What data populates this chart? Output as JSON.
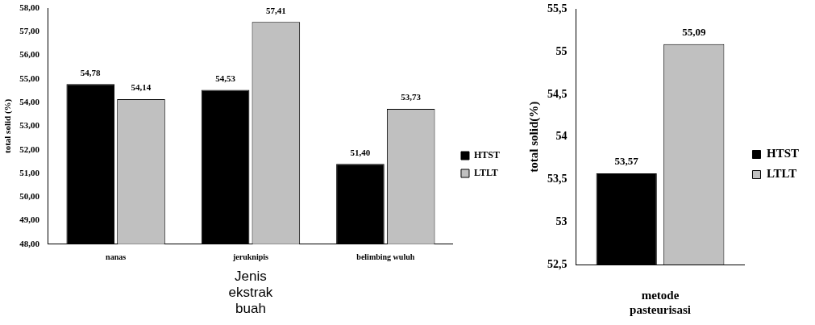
{
  "chart_data": [
    {
      "type": "bar",
      "xlabel": "Jenis ekstrak buah",
      "ylabel": "total solid (%)",
      "categories": [
        "nanas",
        "jeruknipis",
        "belimbing wuluh"
      ],
      "series": [
        {
          "name": "HTST",
          "color": "#000000",
          "values": [
            54.78,
            54.53,
            51.4
          ],
          "value_labels": [
            "54,78",
            "54,53",
            "51,40"
          ]
        },
        {
          "name": "LTLT",
          "color": "#c0c0c0",
          "values": [
            54.14,
            57.41,
            53.73
          ],
          "value_labels": [
            "54,14",
            "57,41",
            "53,73"
          ]
        }
      ],
      "ylim": [
        48,
        58
      ],
      "yticks": [
        {
          "value": 48,
          "label": "48,00"
        },
        {
          "value": 49,
          "label": "49,00"
        },
        {
          "value": 50,
          "label": "50,00"
        },
        {
          "value": 51,
          "label": "51,00"
        },
        {
          "value": 52,
          "label": "52,00"
        },
        {
          "value": 53,
          "label": "53,00"
        },
        {
          "value": 54,
          "label": "54,00"
        },
        {
          "value": 55,
          "label": "55,00"
        },
        {
          "value": 56,
          "label": "56,00"
        },
        {
          "value": 57,
          "label": "57,00"
        },
        {
          "value": 58,
          "label": "58,00"
        }
      ],
      "legend": "right"
    },
    {
      "type": "bar",
      "xlabel": "metode pasteurisasi",
      "ylabel": "total solid(%)",
      "categories": [
        null
      ],
      "series": [
        {
          "name": "HTST",
          "color": "#000000",
          "values": [
            53.57
          ],
          "value_labels": [
            "53,57"
          ]
        },
        {
          "name": "LTLT",
          "color": "#c0c0c0",
          "values": [
            55.09
          ],
          "value_labels": [
            "55,09"
          ]
        }
      ],
      "ylim": [
        52.5,
        55.5
      ],
      "yticks": [
        {
          "value": 52.5,
          "label": "52,5"
        },
        53,
        {
          "value": 53.5,
          "label": "53,5"
        },
        54,
        {
          "value": 54.5,
          "label": "54,5"
        },
        55,
        {
          "value": 55.5,
          "label": "55,5"
        }
      ],
      "legend": "right"
    }
  ]
}
